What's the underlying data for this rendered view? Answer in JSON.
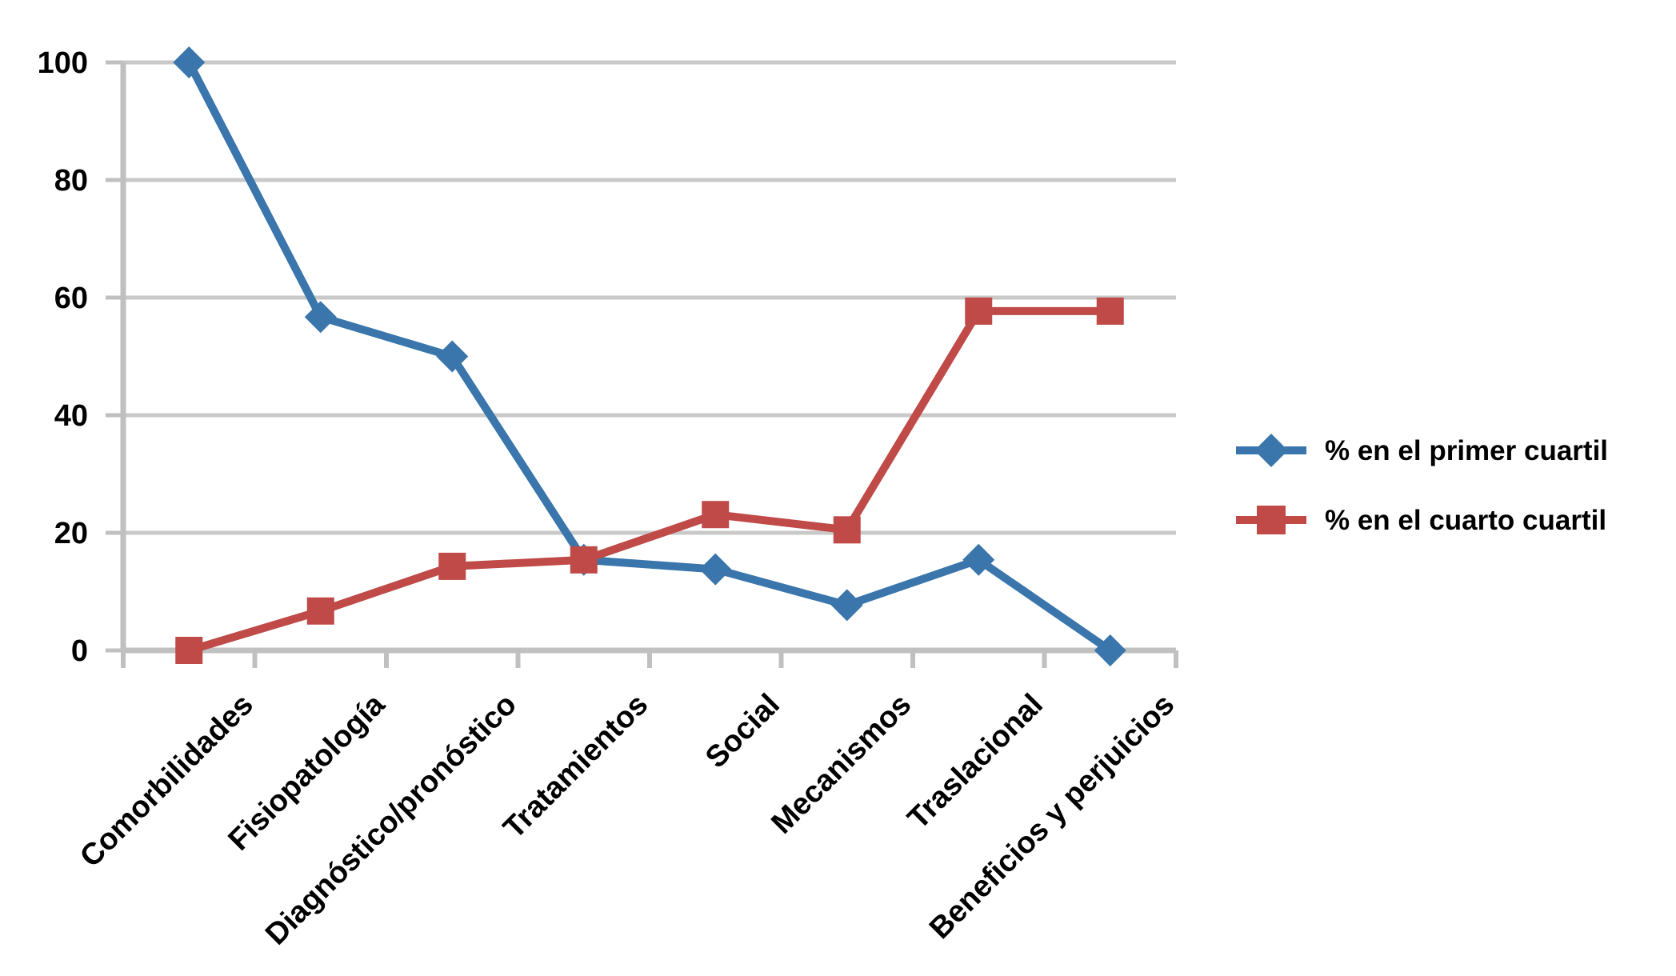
{
  "chart_data": {
    "type": "line",
    "title": "",
    "xlabel": "",
    "ylabel": "",
    "categories": [
      "Comorbilidades",
      "Fisiopatología",
      "Diagnóstico/pronóstico",
      "Tratamientos",
      "Social",
      "Mecanismos",
      "Traslacional",
      "Beneficios y perjuicios"
    ],
    "series": [
      {
        "name": "% en el primer cuartil",
        "marker": "diamond",
        "color": "#3A76AB",
        "values": [
          100,
          56.7,
          50,
          15.4,
          13.8,
          7.7,
          15.4,
          0
        ]
      },
      {
        "name": "% en el cuarto cuartil",
        "marker": "square",
        "color": "#BF4A47",
        "values": [
          0,
          6.7,
          14.3,
          15.4,
          23.1,
          20.5,
          57.7,
          57.7
        ]
      }
    ],
    "ylim": [
      0,
      100
    ],
    "yticks": [
      0,
      20,
      40,
      60,
      80,
      100
    ],
    "grid": true,
    "legend_position": "right-middle",
    "colors": {
      "gridline": "#C9C9C9",
      "axis": "#C0C0C0",
      "tick": "#C0C0C0",
      "text": "#000000",
      "background": "#FFFFFF"
    }
  }
}
